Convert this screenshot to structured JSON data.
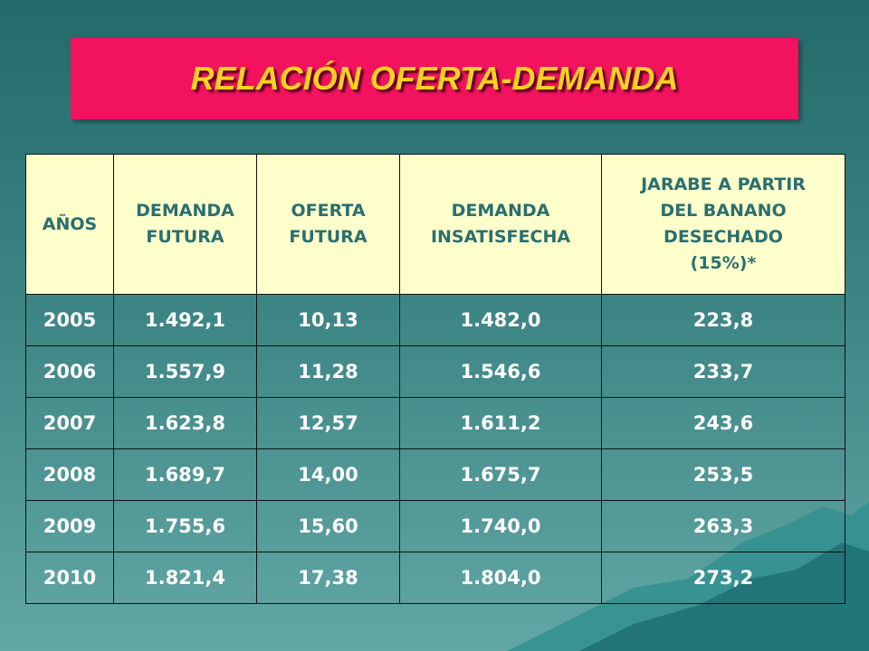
{
  "header": {
    "title": "RELACIÓN OFERTA-DEMANDA"
  },
  "table": {
    "headers": [
      [
        "AÑOS"
      ],
      [
        "DEMANDA",
        "FUTURA"
      ],
      [
        "OFERTA",
        "FUTURA"
      ],
      [
        "DEMANDA",
        "INSATISFECHA"
      ],
      [
        "JARABE A PARTIR",
        "DEL BANANO",
        "DESECHADO",
        "(15%)*"
      ]
    ],
    "rows": [
      [
        "2005",
        "1.492,1",
        "10,13",
        "1.482,0",
        "223,8"
      ],
      [
        "2006",
        "1.557,9",
        "11,28",
        "1.546,6",
        "233,7"
      ],
      [
        "2007",
        "1.623,8",
        "12,57",
        "1.611,2",
        "243,6"
      ],
      [
        "2008",
        "1.689,7",
        "14,00",
        "1.675,7",
        "253,5"
      ],
      [
        "2009",
        "1.755,6",
        "15,60",
        "1.740,0",
        "263,3"
      ],
      [
        "2010",
        "1.821,4",
        "17,38",
        "1.804,0",
        "273,2"
      ]
    ]
  }
}
